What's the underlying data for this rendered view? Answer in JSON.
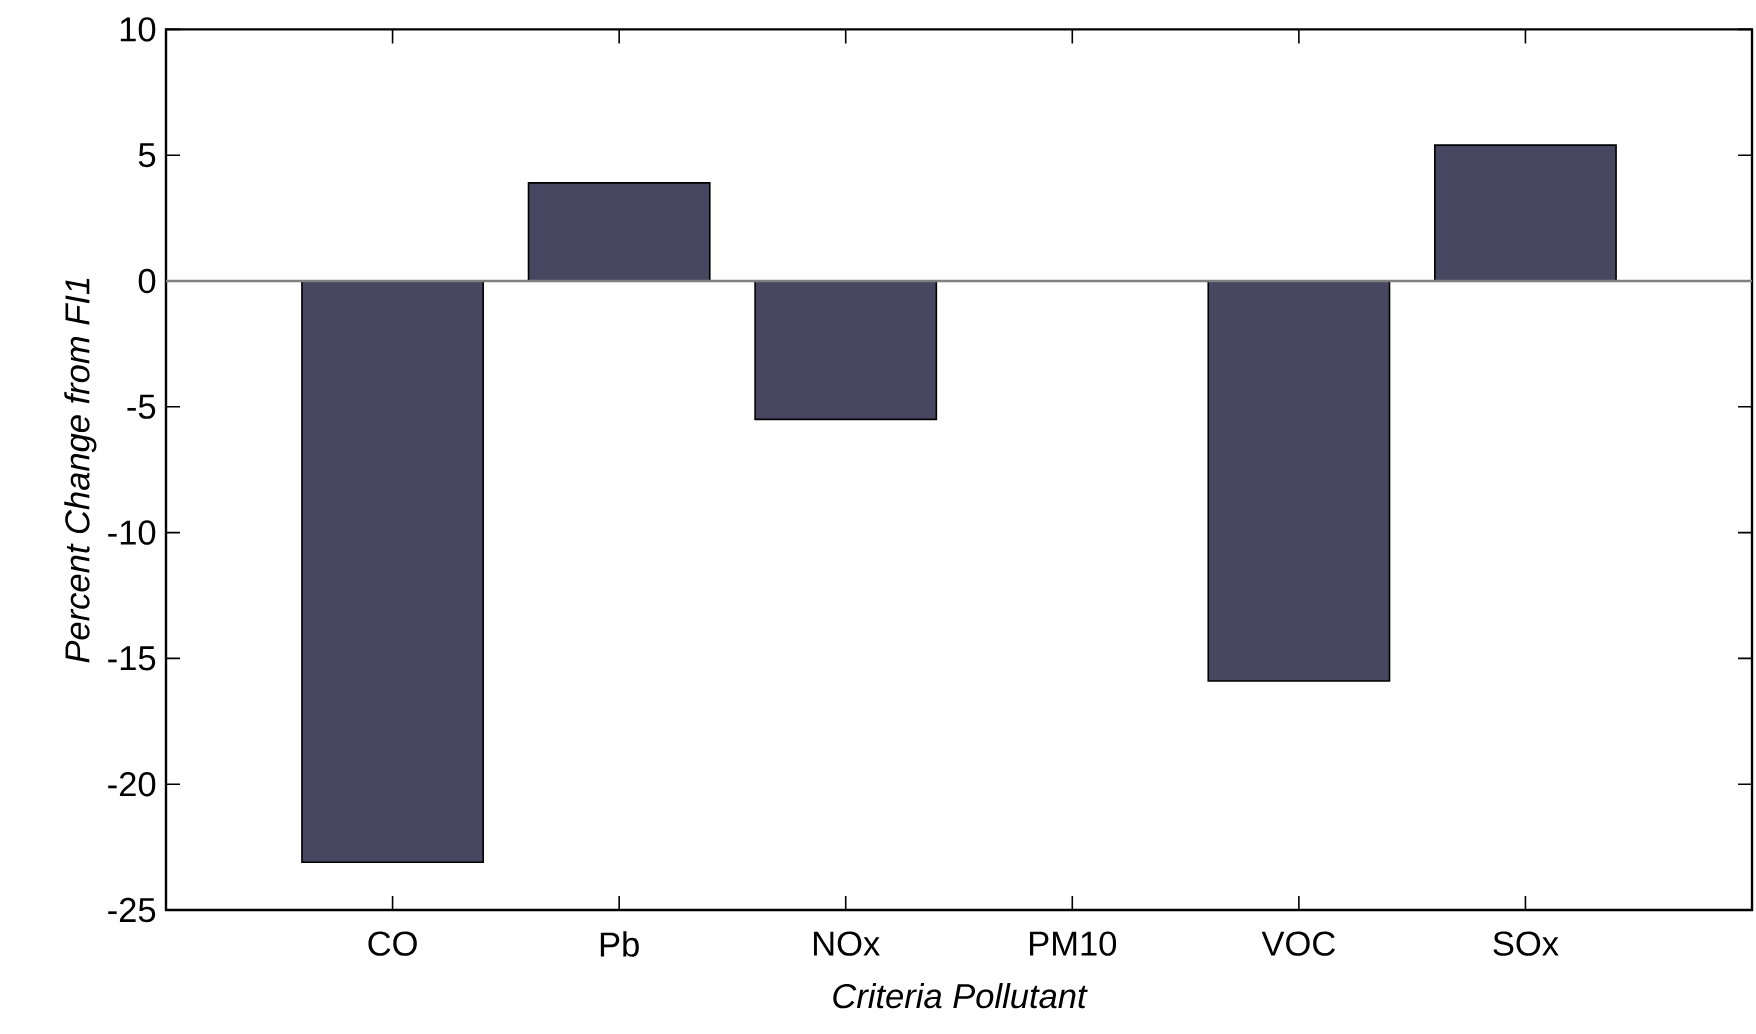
{
  "chart_data": {
    "type": "bar",
    "xlabel": "Criteria Pollutant",
    "ylabel": "Percent Change from FI1",
    "categories": [
      "CO",
      "Pb",
      "NOx",
      "PM10",
      "VOC",
      "SOx"
    ],
    "values": [
      -23.1,
      3.9,
      -5.5,
      0,
      -15.9,
      5.4
    ],
    "color": "#474762",
    "ylim": [
      -25,
      10
    ],
    "yticks": [
      -25,
      -20,
      -15,
      -10,
      -5,
      0,
      5,
      10
    ],
    "ref_lines": [
      {
        "axis": "y",
        "value": 0,
        "color": "#808080"
      }
    ]
  }
}
